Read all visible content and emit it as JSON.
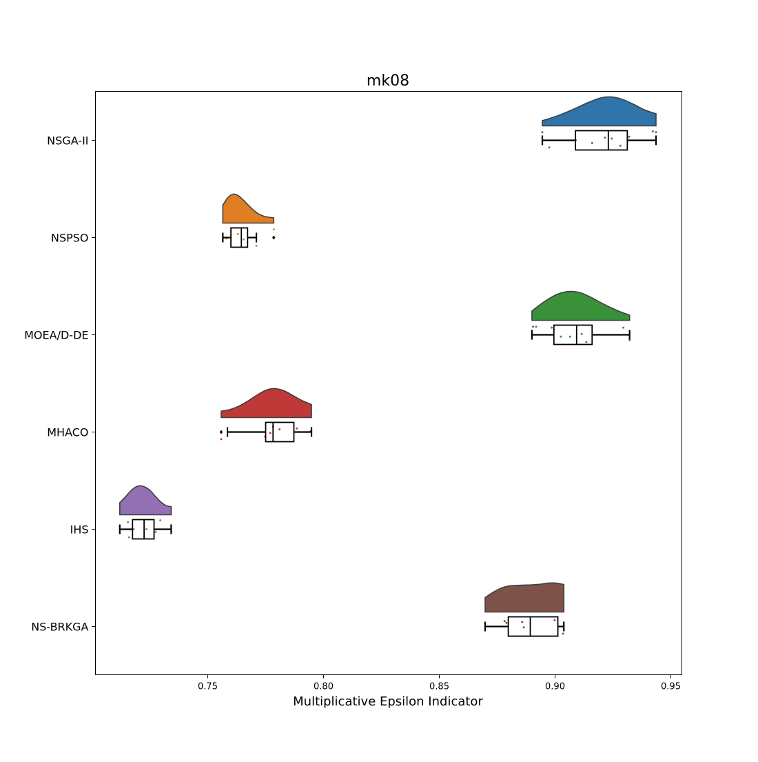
{
  "chart_data": {
    "type": "raincloud",
    "title": "mk08",
    "xlabel": "Multiplicative Epsilon Indicator",
    "ylabel": "",
    "xlim": [
      0.7,
      0.955
    ],
    "xticks": [
      0.75,
      0.8,
      0.85,
      0.9,
      0.95
    ],
    "xtick_labels": [
      "0.75",
      "0.80",
      "0.85",
      "0.90",
      "0.95"
    ],
    "orientation": "horizontal",
    "grid": false,
    "series": [
      {
        "name": "NSGA-II",
        "color": "#2f75ac",
        "box": {
          "whisker_low": 0.8945,
          "q1": 0.9088,
          "median": 0.923,
          "q3": 0.9312,
          "whisker_high": 0.9436
        },
        "outliers": [],
        "density": [
          0.18,
          0.3,
          0.45,
          0.62,
          0.8,
          0.95,
          1.0,
          0.92,
          0.75,
          0.55,
          0.42
        ],
        "points": [
          {
            "x": 0.8945,
            "dy": -0.09
          },
          {
            "x": 0.8975,
            "dy": 0.08
          },
          {
            "x": 0.916,
            "dy": 0.03
          },
          {
            "x": 0.9215,
            "dy": -0.03
          },
          {
            "x": 0.9245,
            "dy": -0.02
          },
          {
            "x": 0.9282,
            "dy": 0.06
          },
          {
            "x": 0.932,
            "dy": -0.04
          },
          {
            "x": 0.9422,
            "dy": -0.1
          },
          {
            "x": 0.9436,
            "dy": -0.09
          },
          {
            "x": 0.909,
            "dy": 0.0
          }
        ]
      },
      {
        "name": "NSPSO",
        "color": "#e07e23",
        "box": {
          "whisker_low": 0.7565,
          "q1": 0.76,
          "median": 0.7645,
          "q3": 0.7672,
          "whisker_high": 0.771
        },
        "outliers": [
          0.7785
        ],
        "density": [
          0.62,
          0.88,
          1.0,
          0.95,
          0.8,
          0.62,
          0.45,
          0.32,
          0.24,
          0.2,
          0.18
        ],
        "points": [
          {
            "x": 0.76,
            "dy": 0.0
          },
          {
            "x": 0.763,
            "dy": -0.04
          },
          {
            "x": 0.7655,
            "dy": 0.02
          },
          {
            "x": 0.771,
            "dy": 0.09
          },
          {
            "x": 0.7785,
            "dy": -0.09
          },
          {
            "x": 0.758,
            "dy": 0.01
          }
        ]
      },
      {
        "name": "MOEA/D-DE",
        "color": "#39913a",
        "box": {
          "whisker_low": 0.89,
          "q1": 0.8995,
          "median": 0.9093,
          "q3": 0.916,
          "whisker_high": 0.9322
        },
        "outliers": [],
        "density": [
          0.32,
          0.58,
          0.8,
          0.95,
          1.0,
          0.95,
          0.8,
          0.62,
          0.45,
          0.3,
          0.18
        ],
        "points": [
          {
            "x": 0.8905,
            "dy": -0.09
          },
          {
            "x": 0.8918,
            "dy": -0.09
          },
          {
            "x": 0.8985,
            "dy": -0.08
          },
          {
            "x": 0.9025,
            "dy": 0.02
          },
          {
            "x": 0.9065,
            "dy": 0.02
          },
          {
            "x": 0.9115,
            "dy": -0.01
          },
          {
            "x": 0.9135,
            "dy": 0.08
          },
          {
            "x": 0.9295,
            "dy": -0.08
          },
          {
            "x": 0.9322,
            "dy": 0.06
          }
        ]
      },
      {
        "name": "MHACO",
        "color": "#c03939",
        "box": {
          "whisker_low": 0.7585,
          "q1": 0.775,
          "median": 0.7782,
          "q3": 0.7872,
          "whisker_high": 0.7948
        },
        "outliers": [
          0.7558
        ],
        "density": [
          0.22,
          0.28,
          0.4,
          0.58,
          0.78,
          0.95,
          1.0,
          0.92,
          0.75,
          0.58,
          0.45
        ],
        "points": [
          {
            "x": 0.7558,
            "dy": 0.08
          },
          {
            "x": 0.7748,
            "dy": 0.05
          },
          {
            "x": 0.777,
            "dy": 0.01
          },
          {
            "x": 0.7782,
            "dy": -0.06
          },
          {
            "x": 0.781,
            "dy": -0.03
          },
          {
            "x": 0.7885,
            "dy": -0.04
          },
          {
            "x": 0.7945,
            "dy": -0.01
          }
        ]
      },
      {
        "name": "IHS",
        "color": "#9370b3",
        "box": {
          "whisker_low": 0.712,
          "q1": 0.7175,
          "median": 0.7225,
          "q3": 0.7268,
          "whisker_high": 0.7342
        },
        "outliers": [],
        "density": [
          0.42,
          0.6,
          0.8,
          0.95,
          1.0,
          0.95,
          0.82,
          0.62,
          0.44,
          0.32,
          0.28
        ],
        "points": [
          {
            "x": 0.7155,
            "dy": -0.08
          },
          {
            "x": 0.716,
            "dy": 0.09
          },
          {
            "x": 0.7235,
            "dy": 0.0
          },
          {
            "x": 0.7275,
            "dy": 0.03
          },
          {
            "x": 0.7295,
            "dy": -0.1
          },
          {
            "x": 0.718,
            "dy": 0.0
          }
        ]
      },
      {
        "name": "NS-BRKGA",
        "color": "#7d5248",
        "box": {
          "whisker_low": 0.8698,
          "q1": 0.8798,
          "median": 0.8893,
          "q3": 0.9012,
          "whisker_high": 0.9038
        },
        "outliers": [],
        "density": [
          0.5,
          0.68,
          0.82,
          0.9,
          0.92,
          0.93,
          0.94,
          0.96,
          1.0,
          1.0,
          0.95
        ],
        "points": [
          {
            "x": 0.8782,
            "dy": -0.06
          },
          {
            "x": 0.879,
            "dy": -0.04
          },
          {
            "x": 0.8858,
            "dy": -0.05
          },
          {
            "x": 0.8865,
            "dy": 0.01
          },
          {
            "x": 0.8998,
            "dy": -0.07
          },
          {
            "x": 0.9035,
            "dy": 0.08
          }
        ]
      }
    ]
  }
}
